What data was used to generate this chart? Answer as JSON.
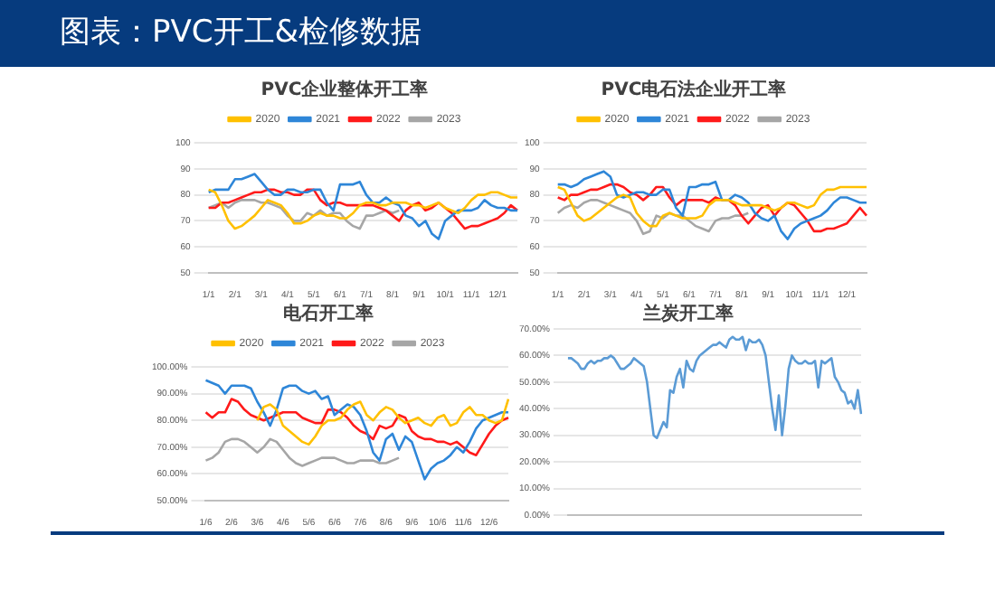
{
  "chart_data": [
    {
      "type": "other",
      "title": "图表：PVC开工&检修数据"
    },
    {
      "type": "line",
      "title": "PVC企业整体开工率",
      "legend": "top",
      "grid": "y",
      "marker": "none",
      "categories": [
        "1/1",
        null,
        null,
        null,
        "2/1",
        null,
        null,
        null,
        "3/1",
        null,
        null,
        null,
        "4/1",
        null,
        null,
        null,
        "5/1",
        null,
        null,
        null,
        "6/1",
        null,
        null,
        null,
        "7/1",
        null,
        null,
        null,
        "8/1",
        null,
        null,
        null,
        "9/1",
        null,
        null,
        null,
        "10/1",
        null,
        null,
        null,
        "11/1",
        null,
        null,
        null,
        "12/1",
        null,
        null,
        null
      ],
      "ylim": [
        50,
        100
      ],
      "yticks": [
        50,
        60,
        70,
        80,
        90,
        100
      ],
      "series": [
        {
          "name": "2020",
          "color": "#ffc000",
          "values": [
            82,
            81,
            76,
            70,
            67,
            68,
            70,
            72,
            75,
            78,
            77,
            76,
            73,
            69,
            69,
            70,
            72,
            73,
            72,
            72,
            71,
            71,
            73,
            76,
            77,
            77,
            76,
            76,
            77,
            77,
            77,
            76,
            76,
            75,
            76,
            77,
            75,
            74,
            73,
            75,
            78,
            80,
            80,
            81,
            81,
            80,
            79,
            79
          ]
        },
        {
          "name": "2021",
          "color": "#2e86d8",
          "values": [
            81,
            82,
            82,
            82,
            86,
            86,
            87,
            88,
            85,
            82,
            80,
            80,
            82,
            82,
            81,
            81,
            82,
            82,
            77,
            74,
            84,
            84,
            84,
            85,
            80,
            77,
            77,
            79,
            77,
            76,
            72,
            71,
            68,
            70,
            65,
            63,
            70,
            72,
            74,
            74,
            74,
            75,
            78,
            76,
            75,
            75,
            74,
            74
          ]
        },
        {
          "name": "2022",
          "color": "#ff1a1a",
          "values": [
            75,
            75,
            77,
            77,
            78,
            79,
            80,
            81,
            81,
            82,
            82,
            81,
            81,
            80,
            80,
            82,
            82,
            78,
            76,
            77,
            77,
            76,
            76,
            76,
            76,
            76,
            75,
            74,
            72,
            70,
            74,
            76,
            77,
            74,
            75,
            77,
            75,
            73,
            70,
            67,
            68,
            68,
            69,
            70,
            71,
            73,
            76,
            74
          ]
        },
        {
          "name": "2023",
          "color": "#a6a6a6",
          "values": [
            75,
            76,
            77,
            75,
            77,
            78,
            78,
            78,
            77,
            77,
            76,
            75,
            72,
            70,
            70,
            73,
            72,
            74,
            72,
            73,
            73,
            70,
            68,
            67,
            72,
            72,
            73,
            74,
            73,
            74,
            null,
            null,
            null,
            null,
            null,
            null,
            null,
            null,
            null,
            null,
            null,
            null,
            null,
            null,
            null,
            null,
            null,
            null
          ]
        }
      ]
    },
    {
      "type": "line",
      "title": "PVC电石法企业开工率",
      "legend": "top",
      "grid": "y",
      "marker": "none",
      "categories": [
        "1/1",
        null,
        null,
        null,
        "2/1",
        null,
        null,
        null,
        "3/1",
        null,
        null,
        null,
        "4/1",
        null,
        null,
        null,
        "5/1",
        null,
        null,
        null,
        "6/1",
        null,
        null,
        null,
        "7/1",
        null,
        null,
        null,
        "8/1",
        null,
        null,
        null,
        "9/1",
        null,
        null,
        null,
        "10/1",
        null,
        null,
        null,
        "11/1",
        null,
        null,
        null,
        "12/1",
        null,
        null,
        null
      ],
      "ylim": [
        50,
        100
      ],
      "yticks": [
        50,
        60,
        70,
        80,
        90,
        100
      ],
      "series": [
        {
          "name": "2020",
          "color": "#ffc000",
          "values": [
            83,
            82,
            77,
            72,
            70,
            71,
            73,
            75,
            77,
            79,
            80,
            79,
            73,
            70,
            68,
            68,
            72,
            73,
            72,
            71,
            71,
            71,
            72,
            76,
            78,
            78,
            78,
            77,
            76,
            76,
            76,
            76,
            75,
            74,
            75,
            77,
            77,
            76,
            75,
            76,
            80,
            82,
            82,
            83,
            83,
            83,
            83,
            83
          ]
        },
        {
          "name": "2021",
          "color": "#2e86d8",
          "values": [
            84,
            84,
            83,
            84,
            86,
            87,
            88,
            89,
            87,
            80,
            79,
            80,
            81,
            81,
            80,
            80,
            82,
            82,
            75,
            72,
            83,
            83,
            84,
            84,
            85,
            78,
            78,
            80,
            79,
            77,
            73,
            71,
            70,
            72,
            66,
            63,
            67,
            69,
            70,
            71,
            72,
            74,
            77,
            79,
            79,
            78,
            77,
            77
          ]
        },
        {
          "name": "2022",
          "color": "#ff1a1a",
          "values": [
            79,
            78,
            80,
            80,
            81,
            82,
            82,
            83,
            84,
            84,
            83,
            81,
            80,
            78,
            80,
            83,
            83,
            79,
            76,
            78,
            78,
            78,
            78,
            77,
            79,
            78,
            78,
            76,
            72,
            69,
            72,
            75,
            76,
            72,
            75,
            77,
            76,
            73,
            70,
            66,
            66,
            67,
            67,
            68,
            69,
            72,
            75,
            72
          ]
        },
        {
          "name": "2023",
          "color": "#a6a6a6",
          "values": [
            73,
            75,
            76,
            75,
            77,
            78,
            78,
            77,
            76,
            75,
            74,
            73,
            70,
            65,
            66,
            72,
            71,
            73,
            72,
            72,
            70,
            68,
            67,
            66,
            70,
            71,
            71,
            72,
            72,
            73,
            null,
            null,
            null,
            null,
            null,
            null,
            null,
            null,
            null,
            null,
            null,
            null,
            null,
            null,
            null,
            null,
            null,
            null
          ]
        }
      ]
    },
    {
      "type": "line",
      "title": "电石开工率",
      "legend": "top",
      "grid": "y",
      "marker": "none",
      "categories": [
        "1/6",
        null,
        null,
        null,
        "2/6",
        null,
        null,
        null,
        "3/6",
        null,
        null,
        null,
        "4/6",
        null,
        null,
        null,
        "5/6",
        null,
        null,
        null,
        "6/6",
        null,
        null,
        null,
        "7/6",
        null,
        null,
        null,
        "8/6",
        null,
        null,
        null,
        "9/6",
        null,
        null,
        null,
        "10/6",
        null,
        null,
        null,
        "11/6",
        null,
        null,
        null,
        "12/6",
        null,
        null,
        null
      ],
      "ylim": [
        50,
        100
      ],
      "yticks": [
        {
          "value": 50,
          "label": "50.00%"
        },
        {
          "value": 60,
          "label": "60.00%"
        },
        {
          "value": 70,
          "label": "70.00%"
        },
        {
          "value": 80,
          "label": "80.00%"
        },
        {
          "value": 90,
          "label": "90.00%"
        },
        {
          "value": 100,
          "label": "100.00%"
        }
      ],
      "series": [
        {
          "name": "2020",
          "color": "#ffc000",
          "values": [
            null,
            null,
            null,
            null,
            null,
            null,
            null,
            null,
            80,
            85,
            86,
            84,
            78,
            76,
            74,
            72,
            71,
            74,
            78,
            80,
            80,
            81,
            84,
            86,
            87,
            82,
            80,
            83,
            85,
            84,
            81,
            79,
            80,
            81,
            79,
            78,
            81,
            82,
            78,
            79,
            83,
            85,
            82,
            82,
            80,
            79,
            80,
            88
          ]
        },
        {
          "name": "2021",
          "color": "#2e86d8",
          "values": [
            95,
            94,
            93,
            90,
            93,
            93,
            93,
            92,
            87,
            83,
            78,
            84,
            92,
            93,
            93,
            91,
            90,
            91,
            88,
            89,
            82,
            84,
            86,
            85,
            82,
            76,
            68,
            65,
            73,
            75,
            69,
            74,
            72,
            65,
            58,
            62,
            64,
            65,
            67,
            70,
            68,
            72,
            77,
            80,
            81,
            82,
            83,
            83
          ]
        },
        {
          "name": "2022",
          "color": "#ff1a1a",
          "values": [
            83,
            81,
            83,
            83,
            88,
            87,
            84,
            82,
            81,
            80,
            81,
            82,
            83,
            83,
            83,
            81,
            80,
            79,
            79,
            84,
            84,
            83,
            81,
            78,
            76,
            75,
            73,
            78,
            77,
            78,
            82,
            81,
            76,
            74,
            73,
            73,
            72,
            72,
            71,
            72,
            70,
            68,
            67,
            71,
            75,
            78,
            80,
            81
          ]
        },
        {
          "name": "2023",
          "color": "#a6a6a6",
          "values": [
            65,
            66,
            68,
            72,
            73,
            73,
            72,
            70,
            68,
            70,
            73,
            72,
            69,
            66,
            64,
            63,
            64,
            65,
            66,
            66,
            66,
            65,
            64,
            64,
            65,
            65,
            65,
            64,
            64,
            65,
            66,
            null,
            null,
            null,
            null,
            null,
            null,
            null,
            null,
            null,
            null,
            null,
            null,
            null,
            null,
            null,
            null,
            null
          ]
        }
      ]
    },
    {
      "type": "line",
      "title": "兰炭开工率",
      "legend": false,
      "grid": "y",
      "marker": "none",
      "tick_labels": "y",
      "categories": [
        null,
        null,
        null,
        null,
        null,
        null,
        null,
        null,
        null,
        null,
        null,
        null,
        null,
        null,
        null,
        null,
        null,
        null,
        null,
        null,
        null,
        null,
        null,
        null,
        null,
        null,
        null,
        null,
        null,
        null,
        null,
        null,
        null,
        null,
        null,
        null,
        null,
        null,
        null,
        null,
        null,
        null,
        null,
        null,
        null,
        null,
        null,
        null,
        null,
        null,
        null,
        null,
        null,
        null,
        null,
        null,
        null,
        null,
        null,
        null,
        null,
        null,
        null,
        null,
        null,
        null,
        null,
        null,
        null,
        null,
        null,
        null,
        null,
        null,
        null,
        null,
        null,
        null,
        null,
        null,
        null,
        null,
        null,
        null,
        null,
        null,
        null,
        null,
        null,
        null
      ],
      "ylim": [
        0,
        70
      ],
      "yticks": [
        {
          "value": 0,
          "label": "0.00%"
        },
        {
          "value": 10,
          "label": "10.00%"
        },
        {
          "value": 20,
          "label": "20.00%"
        },
        {
          "value": 30,
          "label": "30.00%"
        },
        {
          "value": 40,
          "label": "40.00%"
        },
        {
          "value": 50,
          "label": "50.00%"
        },
        {
          "value": 60,
          "label": "60.00%"
        },
        {
          "value": 70,
          "label": "70.00%"
        }
      ],
      "series": [
        {
          "color": "#5b9bd5",
          "values": [
            59,
            59,
            58,
            57,
            55,
            55,
            57,
            58,
            57,
            58,
            58,
            59,
            59,
            60,
            59,
            57,
            55,
            55,
            56,
            57,
            59,
            58,
            57,
            56,
            50,
            40,
            30,
            29,
            32,
            35,
            33,
            47,
            46,
            52,
            55,
            48,
            58,
            55,
            54,
            58,
            60,
            61,
            62,
            63,
            64,
            64,
            65,
            64,
            63,
            66,
            67,
            66,
            66,
            67,
            62,
            66,
            65,
            65,
            66,
            64,
            60,
            50,
            40,
            32,
            45,
            30,
            41,
            55,
            60,
            58,
            57,
            57,
            58,
            57,
            57,
            58,
            48,
            58,
            57,
            58,
            59,
            52,
            50,
            47,
            46,
            42,
            43,
            40,
            47,
            38
          ]
        }
      ]
    }
  ]
}
